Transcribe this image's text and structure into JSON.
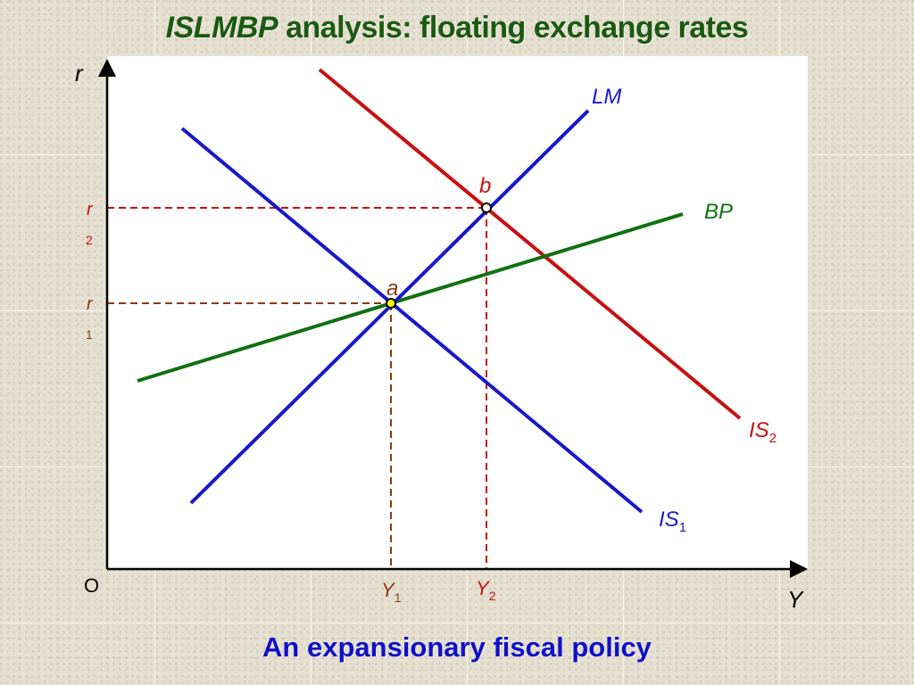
{
  "title": {
    "emphasis": "ISLMBP",
    "rest": " analysis: floating exchange rates"
  },
  "caption": "An expansionary fiscal policy",
  "axes": {
    "y_label": "r",
    "x_label": "Y",
    "origin_label": "O"
  },
  "curves": {
    "lm": {
      "label": "LM",
      "color": "#1818c8"
    },
    "is1": {
      "label": "IS",
      "sub": "1",
      "color": "#1818c8"
    },
    "is2": {
      "label": "IS",
      "sub": "2",
      "color": "#c81010"
    },
    "bp": {
      "label": "BP",
      "color": "#107010"
    }
  },
  "points": {
    "a": {
      "label": "a",
      "color": "#8b3a10"
    },
    "b": {
      "label": "b",
      "color": "#c81010"
    }
  },
  "ticks": {
    "r1": {
      "label": "r",
      "sub": "1",
      "color": "#8b3a10"
    },
    "r2": {
      "label": "r",
      "sub": "2",
      "color": "#c81010"
    },
    "y1": {
      "label": "Y",
      "sub": "1",
      "color": "#8b3a10"
    },
    "y2": {
      "label": "Y",
      "sub": "2",
      "color": "#c81010"
    }
  }
}
